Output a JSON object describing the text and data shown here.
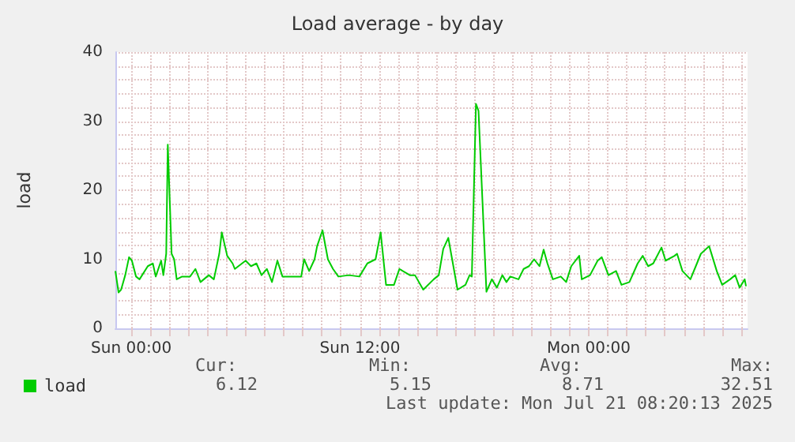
{
  "chart_data": {
    "type": "line",
    "title": "Load average - by day",
    "ylabel": "load",
    "x": [
      "2025-07-19T23:10",
      "2025-07-19T23:20",
      "2025-07-19T23:28",
      "2025-07-19T23:41",
      "2025-07-19T23:53",
      "2025-07-20T00:02",
      "2025-07-20T00:15",
      "2025-07-20T00:26",
      "2025-07-20T00:52",
      "2025-07-20T01:08",
      "2025-07-20T01:17",
      "2025-07-20T01:34",
      "2025-07-20T01:41",
      "2025-07-20T01:50",
      "2025-07-20T01:55",
      "2025-07-20T02:07",
      "2025-07-20T02:15",
      "2025-07-20T02:23",
      "2025-07-20T02:40",
      "2025-07-20T03:05",
      "2025-07-20T03:22",
      "2025-07-20T03:38",
      "2025-07-20T04:04",
      "2025-07-20T04:20",
      "2025-07-20T04:37",
      "2025-07-20T04:45",
      "2025-07-20T05:02",
      "2025-07-20T05:19",
      "2025-07-20T05:26",
      "2025-07-20T06:00",
      "2025-07-20T06:17",
      "2025-07-20T06:34",
      "2025-07-20T06:50",
      "2025-07-20T07:07",
      "2025-07-20T07:23",
      "2025-07-20T07:40",
      "2025-07-20T07:56",
      "2025-07-20T08:22",
      "2025-07-20T08:55",
      "2025-07-20T09:04",
      "2025-07-20T09:20",
      "2025-07-20T09:37",
      "2025-07-20T09:45",
      "2025-07-20T10:02",
      "2025-07-20T10:19",
      "2025-07-20T10:35",
      "2025-07-20T10:52",
      "2025-07-20T11:25",
      "2025-07-20T11:58",
      "2025-07-20T12:23",
      "2025-07-20T12:49",
      "2025-07-20T13:05",
      "2025-07-20T13:22",
      "2025-07-20T13:47",
      "2025-07-20T14:04",
      "2025-07-20T14:37",
      "2025-07-20T14:53",
      "2025-07-20T15:19",
      "2025-07-20T15:52",
      "2025-07-20T16:08",
      "2025-07-20T16:22",
      "2025-07-20T16:38",
      "2025-07-20T16:50",
      "2025-07-20T17:07",
      "2025-07-20T17:32",
      "2025-07-20T17:45",
      "2025-07-20T17:52",
      "2025-07-20T18:05",
      "2025-07-20T18:13",
      "2025-07-20T18:38",
      "2025-07-20T18:55",
      "2025-07-20T19:11",
      "2025-07-20T19:28",
      "2025-07-20T19:41",
      "2025-07-20T19:53",
      "2025-07-20T20:19",
      "2025-07-20T20:35",
      "2025-07-20T20:52",
      "2025-07-20T21:08",
      "2025-07-20T21:25",
      "2025-07-20T21:38",
      "2025-07-20T21:50",
      "2025-07-20T22:07",
      "2025-07-20T22:32",
      "2025-07-20T22:49",
      "2025-07-20T23:05",
      "2025-07-20T23:30",
      "2025-07-20T23:38",
      "2025-07-21T00:04",
      "2025-07-21T00:28",
      "2025-07-21T00:41",
      "2025-07-21T01:02",
      "2025-07-21T01:26",
      "2025-07-21T01:43",
      "2025-07-21T02:08",
      "2025-07-21T02:34",
      "2025-07-21T02:50",
      "2025-07-21T03:07",
      "2025-07-21T03:23",
      "2025-07-21T03:49",
      "2025-07-21T04:02",
      "2025-07-21T04:30",
      "2025-07-21T04:38",
      "2025-07-21T04:55",
      "2025-07-21T05:20",
      "2025-07-21T05:37",
      "2025-07-21T05:53",
      "2025-07-21T06:19",
      "2025-07-21T06:43",
      "2025-07-21T07:00",
      "2025-07-21T07:25",
      "2025-07-21T07:41",
      "2025-07-21T07:55",
      "2025-07-21T08:11",
      "2025-07-21T08:15"
    ],
    "series": [
      {
        "name": "load",
        "color": "#00cc00",
        "values": [
          8.3,
          5.2,
          5.6,
          7.7,
          10.3,
          9.8,
          7.5,
          7.1,
          9,
          9.4,
          7.5,
          9.8,
          7.7,
          10.8,
          26.6,
          10.8,
          10,
          7.1,
          7.5,
          7.5,
          8.6,
          6.7,
          7.7,
          7.1,
          10.8,
          13.9,
          10.5,
          9.4,
          8.6,
          9.8,
          9,
          9.4,
          7.7,
          8.6,
          6.7,
          9.8,
          7.5,
          7.5,
          7.5,
          10,
          8.3,
          10,
          11.9,
          14.2,
          10,
          8.6,
          7.5,
          7.7,
          7.5,
          9.4,
          10,
          13.9,
          6.3,
          6.3,
          8.6,
          7.7,
          7.7,
          5.6,
          7.1,
          7.7,
          11.5,
          13.1,
          10,
          5.6,
          6.3,
          7.7,
          7.5,
          32.5,
          31.5,
          5.3,
          7.1,
          5.9,
          7.7,
          6.7,
          7.5,
          7.1,
          8.6,
          9,
          10,
          9,
          11.4,
          9.4,
          7.1,
          7.5,
          6.7,
          9,
          10.5,
          7.1,
          7.7,
          9.8,
          10.3,
          7.7,
          8.3,
          6.3,
          6.7,
          9.4,
          10.5,
          9,
          9.4,
          11.7,
          9.8,
          10.5,
          10.8,
          8.3,
          7.1,
          9,
          10.8,
          11.9,
          8.3,
          6.3,
          7.1,
          7.7,
          5.9,
          7.1,
          6.1
        ]
      }
    ],
    "xlim": [
      "2025-07-19T23:10",
      "2025-07-21T08:20"
    ],
    "xticks": [
      {
        "value": "2025-07-20T00:00",
        "label": "Sun 00:00"
      },
      {
        "value": "2025-07-20T01:00",
        "label": null
      },
      {
        "value": "2025-07-20T02:00",
        "label": null
      },
      {
        "value": "2025-07-20T03:00",
        "label": null
      },
      {
        "value": "2025-07-20T04:00",
        "label": null
      },
      {
        "value": "2025-07-20T05:00",
        "label": null
      },
      {
        "value": "2025-07-20T06:00",
        "label": null
      },
      {
        "value": "2025-07-20T07:00",
        "label": null
      },
      {
        "value": "2025-07-20T08:00",
        "label": null
      },
      {
        "value": "2025-07-20T09:00",
        "label": null
      },
      {
        "value": "2025-07-20T10:00",
        "label": null
      },
      {
        "value": "2025-07-20T11:00",
        "label": null
      },
      {
        "value": "2025-07-20T12:00",
        "label": "Sun 12:00"
      },
      {
        "value": "2025-07-20T13:00",
        "label": null
      },
      {
        "value": "2025-07-20T14:00",
        "label": null
      },
      {
        "value": "2025-07-20T15:00",
        "label": null
      },
      {
        "value": "2025-07-20T16:00",
        "label": null
      },
      {
        "value": "2025-07-20T17:00",
        "label": null
      },
      {
        "value": "2025-07-20T18:00",
        "label": null
      },
      {
        "value": "2025-07-20T19:00",
        "label": null
      },
      {
        "value": "2025-07-20T20:00",
        "label": null
      },
      {
        "value": "2025-07-20T21:00",
        "label": null
      },
      {
        "value": "2025-07-20T22:00",
        "label": null
      },
      {
        "value": "2025-07-20T23:00",
        "label": null
      },
      {
        "value": "2025-07-21T00:00",
        "label": "Mon 00:00"
      },
      {
        "value": "2025-07-21T01:00",
        "label": null
      },
      {
        "value": "2025-07-21T02:00",
        "label": null
      },
      {
        "value": "2025-07-21T03:00",
        "label": null
      },
      {
        "value": "2025-07-21T04:00",
        "label": null
      },
      {
        "value": "2025-07-21T05:00",
        "label": null
      },
      {
        "value": "2025-07-21T06:00",
        "label": null
      },
      {
        "value": "2025-07-21T07:00",
        "label": null
      },
      {
        "value": "2025-07-21T08:00",
        "label": null
      }
    ],
    "ylim": [
      0,
      40
    ],
    "yticks": [
      0,
      {
        "value": 2,
        "label": null
      },
      {
        "value": 4,
        "label": null
      },
      {
        "value": 6,
        "label": null
      },
      {
        "value": 8,
        "label": null
      },
      10,
      {
        "value": 12,
        "label": null
      },
      {
        "value": 14,
        "label": null
      },
      {
        "value": 16,
        "label": null
      },
      {
        "value": 18,
        "label": null
      },
      20,
      {
        "value": 22,
        "label": null
      },
      {
        "value": 24,
        "label": null
      },
      {
        "value": 26,
        "label": null
      },
      {
        "value": 28,
        "label": null
      },
      30,
      {
        "value": 32,
        "label": null
      },
      {
        "value": 34,
        "label": null
      },
      {
        "value": 36,
        "label": null
      },
      {
        "value": 38,
        "label": null
      },
      40
    ],
    "grid": true,
    "legend": "bottom left",
    "marker": "none",
    "line_style": "solid",
    "annotations": [
      "Cur:",
      "Min:",
      "Avg:",
      "Max:",
      "6.12",
      "5.15",
      "8.71",
      "32.51",
      "Last update: Mon Jul 21 08:20:13 2025"
    ]
  }
}
